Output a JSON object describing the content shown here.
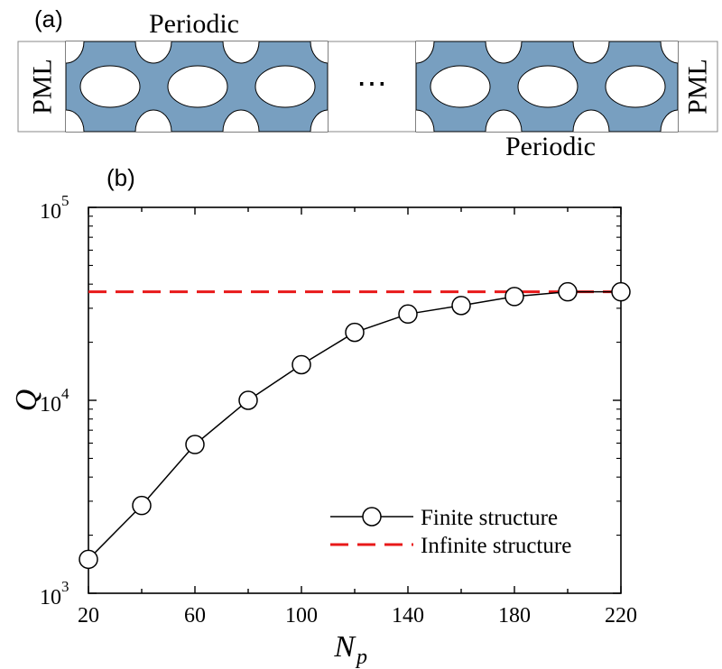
{
  "panel_a": {
    "label": "(a)",
    "pml_left": "PML",
    "pml_right": "PML",
    "periodic_top": "Periodic",
    "periodic_bottom": "Periodic",
    "ellipsis": "⋯",
    "colors": {
      "slab": "#789FC0",
      "hole": "#ffffff",
      "border": "#000000"
    }
  },
  "panel_b": {
    "label": "(b)",
    "legend": {
      "finite": "Finite structure",
      "infinite": "Infinite structure",
      "placement": "bottom-right"
    }
  },
  "chart_data": {
    "type": "line",
    "xlabel": "N",
    "xlabel_sub": "p",
    "ylabel": "Q",
    "xlim": [
      20,
      220
    ],
    "ylim": [
      1000,
      100000
    ],
    "yscale": "log",
    "grid": false,
    "x_ticks": [
      20,
      60,
      100,
      140,
      180,
      220
    ],
    "y_ticks": [
      {
        "value": 1000,
        "base": "10",
        "exp": "3"
      },
      {
        "value": 10000,
        "base": "10",
        "exp": "4"
      },
      {
        "value": 100000,
        "base": "10",
        "exp": "5"
      }
    ],
    "series": [
      {
        "name": "Finite structure",
        "style": "solid line with open circles",
        "color": "#000000",
        "x": [
          20,
          40,
          60,
          80,
          100,
          120,
          140,
          160,
          180,
          200,
          220
        ],
        "y": [
          1500,
          2850,
          5900,
          10000,
          15300,
          22500,
          28000,
          31000,
          34500,
          36500,
          36500
        ]
      },
      {
        "name": "Infinite structure",
        "style": "dashed line",
        "color": "#E8191A",
        "x": [
          20,
          220
        ],
        "y": [
          36500,
          36500
        ]
      }
    ]
  }
}
